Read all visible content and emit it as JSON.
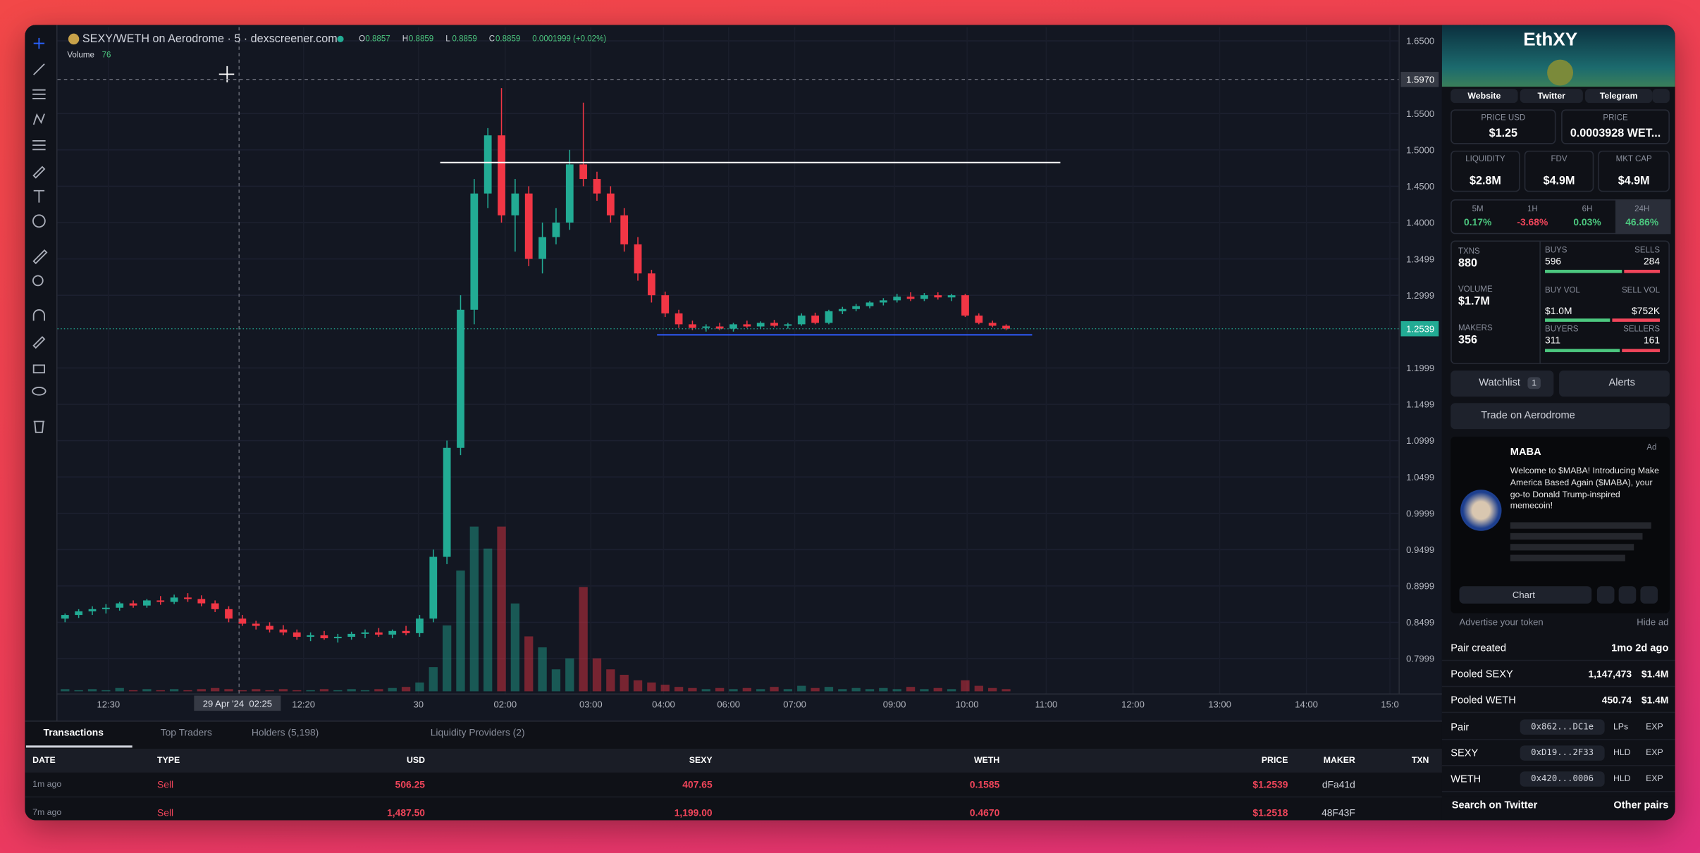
{
  "header": {
    "pair": "SEXY/WETH on Aerodrome · 5 · dexscreener.com",
    "o_label": "O",
    "o": 0.8857,
    "h_label": "H",
    "h": 0.8859,
    "l_label": "L",
    "l": 0.8859,
    "c_label": "C",
    "c": 0.8859,
    "change": "0.0001999 (+0.02%)",
    "volume_label": "Volume",
    "volume_value": 76
  },
  "chart": {
    "type": "candlestick",
    "ylim": [
      0.752,
      1.669
    ],
    "yticks": [
      {
        "value": 1.65,
        "label": "1.6500"
      },
      {
        "value": 1.55,
        "label": "1.5500"
      },
      {
        "value": 1.5,
        "label": "1.5000"
      },
      {
        "value": 1.45,
        "label": "1.4500"
      },
      {
        "value": 1.4,
        "label": "1.4000"
      },
      1.3499,
      1.2999,
      1.1999,
      1.1499,
      1.0999,
      1.0499,
      0.9999,
      0.9499,
      0.8999,
      0.8499,
      0.7999
    ],
    "crosshair": {
      "value": 1.597,
      "label": "1.5970"
    },
    "last_price": {
      "value": 1.2539,
      "label": "1.2539"
    },
    "crosshair_time": "29 Apr '24  02:25",
    "x_labels": [
      "12:30",
      "12:20",
      "30",
      "02:00",
      "03:00",
      "04:00",
      "06:00",
      "07:00",
      "09:00",
      "10:00",
      "11:00",
      "12:00",
      "13:00",
      "14:00",
      "15:0"
    ],
    "candles": [
      [
        0.855,
        0.862,
        0.85,
        0.86
      ],
      [
        0.86,
        0.868,
        0.856,
        0.865
      ],
      [
        0.865,
        0.872,
        0.86,
        0.868
      ],
      [
        0.868,
        0.875,
        0.862,
        0.87
      ],
      [
        0.87,
        0.878,
        0.866,
        0.876
      ],
      [
        0.876,
        0.88,
        0.87,
        0.873
      ],
      [
        0.873,
        0.882,
        0.87,
        0.88
      ],
      [
        0.88,
        0.886,
        0.874,
        0.878
      ],
      [
        0.878,
        0.888,
        0.875,
        0.884
      ],
      [
        0.884,
        0.89,
        0.878,
        0.882
      ],
      [
        0.882,
        0.887,
        0.872,
        0.876
      ],
      [
        0.876,
        0.88,
        0.864,
        0.868
      ],
      [
        0.868,
        0.872,
        0.85,
        0.855
      ],
      [
        0.855,
        0.86,
        0.845,
        0.848
      ],
      [
        0.848,
        0.852,
        0.84,
        0.845
      ],
      [
        0.845,
        0.85,
        0.836,
        0.84
      ],
      [
        0.84,
        0.846,
        0.832,
        0.836
      ],
      [
        0.836,
        0.84,
        0.826,
        0.83
      ],
      [
        0.83,
        0.836,
        0.824,
        0.832
      ],
      [
        0.832,
        0.838,
        0.826,
        0.828
      ],
      [
        0.828,
        0.834,
        0.822,
        0.83
      ],
      [
        0.83,
        0.837,
        0.826,
        0.834
      ],
      [
        0.834,
        0.84,
        0.828,
        0.836
      ],
      [
        0.836,
        0.842,
        0.83,
        0.833
      ],
      [
        0.833,
        0.84,
        0.828,
        0.838
      ],
      [
        0.838,
        0.845,
        0.832,
        0.835
      ],
      [
        0.835,
        0.86,
        0.83,
        0.855
      ],
      [
        0.855,
        0.95,
        0.85,
        0.94
      ],
      [
        0.94,
        1.1,
        0.93,
        1.09
      ],
      [
        1.09,
        1.3,
        1.08,
        1.28
      ],
      [
        1.28,
        1.46,
        1.26,
        1.44
      ],
      [
        1.44,
        1.53,
        1.42,
        1.52
      ],
      [
        1.52,
        1.585,
        1.4,
        1.41
      ],
      [
        1.41,
        1.46,
        1.36,
        1.44
      ],
      [
        1.44,
        1.45,
        1.34,
        1.35
      ],
      [
        1.35,
        1.4,
        1.33,
        1.38
      ],
      [
        1.38,
        1.42,
        1.37,
        1.4
      ],
      [
        1.4,
        1.5,
        1.39,
        1.48
      ],
      [
        1.48,
        1.565,
        1.45,
        1.46
      ],
      [
        1.46,
        1.47,
        1.43,
        1.44
      ],
      [
        1.44,
        1.45,
        1.4,
        1.41
      ],
      [
        1.41,
        1.42,
        1.36,
        1.37
      ],
      [
        1.37,
        1.38,
        1.32,
        1.33
      ],
      [
        1.33,
        1.335,
        1.29,
        1.3
      ],
      [
        1.3,
        1.305,
        1.27,
        1.275
      ],
      [
        1.275,
        1.28,
        1.255,
        1.26
      ],
      [
        1.26,
        1.265,
        1.252,
        1.255
      ],
      [
        1.255,
        1.26,
        1.25,
        1.257
      ],
      [
        1.257,
        1.262,
        1.252,
        1.254
      ],
      [
        1.254,
        1.262,
        1.25,
        1.26
      ],
      [
        1.26,
        1.265,
        1.255,
        1.257
      ],
      [
        1.257,
        1.264,
        1.254,
        1.262
      ],
      [
        1.262,
        1.266,
        1.256,
        1.258
      ],
      [
        1.258,
        1.262,
        1.254,
        1.26
      ],
      [
        1.26,
        1.275,
        1.258,
        1.272
      ],
      [
        1.272,
        1.276,
        1.26,
        1.262
      ],
      [
        1.262,
        1.28,
        1.26,
        1.278
      ],
      [
        1.278,
        1.284,
        1.274,
        1.281
      ],
      [
        1.281,
        1.288,
        1.278,
        1.285
      ],
      [
        1.285,
        1.292,
        1.282,
        1.29
      ],
      [
        1.29,
        1.296,
        1.286,
        1.293
      ],
      [
        1.293,
        1.302,
        1.29,
        1.298
      ],
      [
        1.298,
        1.304,
        1.292,
        1.295
      ],
      [
        1.295,
        1.303,
        1.292,
        1.3
      ],
      [
        1.3,
        1.304,
        1.294,
        1.297
      ],
      [
        1.297,
        1.302,
        1.292,
        1.3
      ],
      [
        1.3,
        1.302,
        1.27,
        1.272
      ],
      [
        1.272,
        1.275,
        1.26,
        1.262
      ],
      [
        1.262,
        1.265,
        1.256,
        1.258
      ],
      [
        1.258,
        1.26,
        1.252,
        1.254
      ]
    ],
    "volume": [
      2,
      1,
      2,
      1,
      3,
      1,
      2,
      1,
      2,
      1,
      2,
      3,
      2,
      1,
      2,
      1,
      2,
      1,
      1,
      2,
      1,
      2,
      1,
      2,
      3,
      4,
      8,
      22,
      60,
      110,
      150,
      130,
      150,
      80,
      50,
      40,
      20,
      30,
      95,
      30,
      20,
      15,
      10,
      8,
      6,
      4,
      3,
      2,
      3,
      2,
      3,
      2,
      4,
      2,
      5,
      3,
      4,
      2,
      3,
      2,
      3,
      2,
      4,
      2,
      3,
      2,
      10,
      5,
      3,
      2
    ]
  },
  "transactions": {
    "tabs": [
      "Transactions",
      "Top Traders",
      "Holders (5,198)",
      "Liquidity Providers (2)"
    ],
    "columns": [
      "DATE",
      "TYPE",
      "USD",
      "SEXY",
      "WETH",
      "PRICE",
      "MAKER",
      "TXN"
    ],
    "rows": [
      [
        "1m ago",
        "Sell",
        "506.25",
        "407.65",
        "0.1585",
        "$1.2539",
        "dFa41d"
      ],
      [
        "7m ago",
        "Sell",
        "1,487.50",
        "1,199.00",
        "0.4670",
        "$1.2518",
        "48F43F"
      ]
    ]
  },
  "sidebar": {
    "token_title": "EthXY",
    "links": [
      "Website",
      "Twitter",
      "Telegram"
    ],
    "price_usd": {
      "label": "PRICE USD",
      "value": "$1.25"
    },
    "price_native": {
      "label": "PRICE",
      "value": "0.0003928 WET..."
    },
    "liquidity": {
      "label": "LIQUIDITY",
      "value": "$2.8M"
    },
    "fdv": {
      "label": "FDV",
      "value": "$4.9M"
    },
    "mkt_cap": {
      "label": "MKT CAP",
      "value": "$4.9M"
    },
    "changes": [
      {
        "period": "5M",
        "value": "0.17%"
      },
      {
        "period": "1H",
        "value": "-3.68%"
      },
      {
        "period": "6H",
        "value": "0.03%"
      },
      {
        "period": "24H",
        "value": "46.86%"
      }
    ],
    "stats": {
      "txns_label": "TXNS",
      "txns": 880,
      "buys_label": "BUYS",
      "buys": 596,
      "sells_label": "SELLS",
      "sells": 284,
      "volume_label": "VOLUME",
      "volume": "$1.7M",
      "buy_vol_label": "BUY VOL",
      "buy_vol": "$1.0M",
      "sell_vol_label": "SELL VOL",
      "sell_vol": "$752K",
      "makers_label": "MAKERS",
      "makers": 356,
      "buyers_label": "BUYERS",
      "buyers": 311,
      "sellers_label": "SELLERS",
      "sellers": 161
    },
    "watchlist": "Watchlist",
    "watchlist_count": 1,
    "alerts": "Alerts",
    "trade": "Trade on Aerodrome",
    "ad": {
      "badge": "Ad",
      "name": "MABA",
      "text": "Welcome to $MABA! Introducing Make America Based Again ($MABA), your go-to Donald Trump-inspired memecoin!",
      "chart_button": "Chart",
      "advertise": "Advertise your token",
      "hide": "Hide ad"
    },
    "info": {
      "pair_created_label": "Pair created",
      "pair_created": "1mo 2d ago",
      "pooled_sexy_label": "Pooled SEXY",
      "pooled_sexy": "1,147,473",
      "pooled_sexy_usd": "$1.4M",
      "pooled_weth_label": "Pooled WETH",
      "pooled_weth": "450.74",
      "pooled_weth_usd": "$1.4M",
      "addresses": [
        {
          "label": "Pair",
          "address": "0x862...DC1e",
          "link": "LPs",
          "exp": "EXP"
        },
        {
          "label": "SEXY",
          "address": "0xD19...2F33",
          "link": "HLD",
          "exp": "EXP"
        },
        {
          "label": "WETH",
          "address": "0x420...0006",
          "link": "HLD",
          "exp": "EXP"
        }
      ]
    },
    "search_twitter": "Search on Twitter",
    "other_pairs": "Other pairs"
  }
}
